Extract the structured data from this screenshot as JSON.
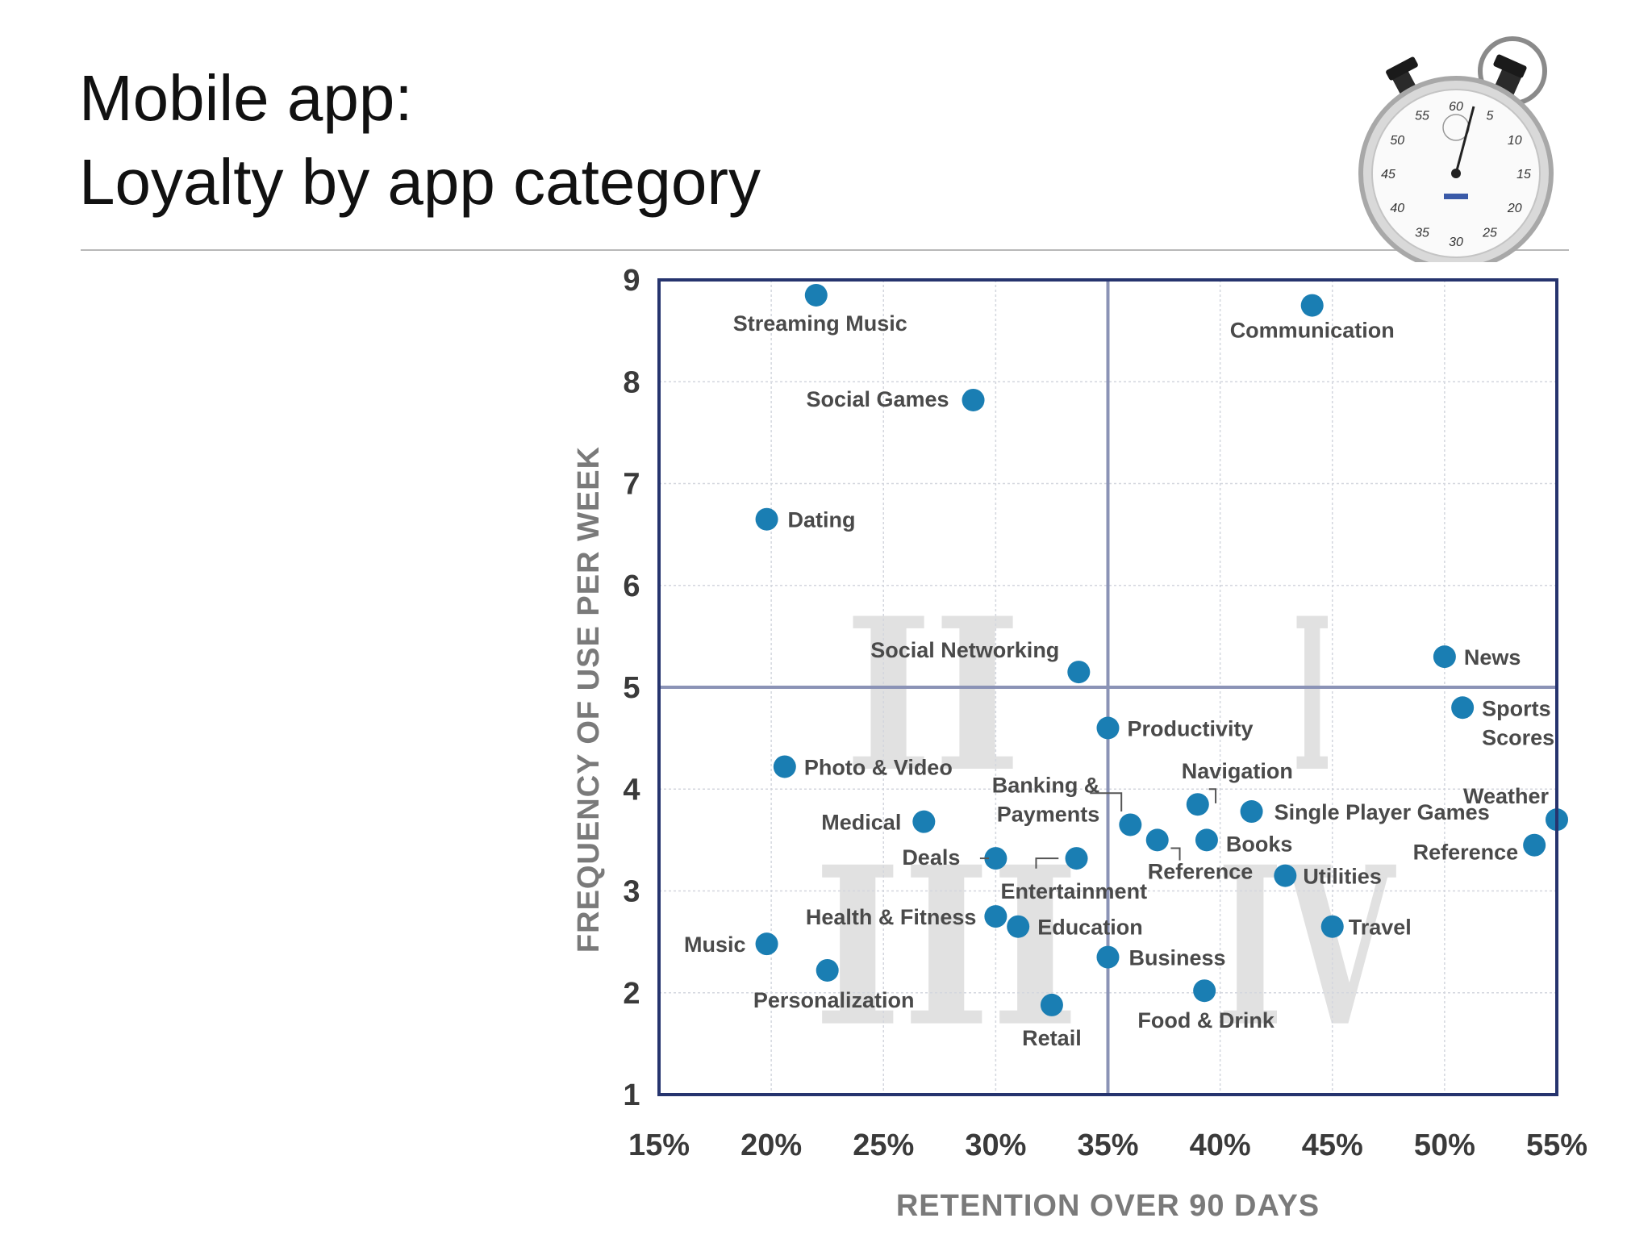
{
  "title": {
    "line1": "Mobile app:",
    "line2": "Loyalty by app category"
  },
  "stopwatch": {
    "icon": "stopwatch-icon",
    "dial_numbers": [
      "5",
      "10",
      "15",
      "20",
      "25",
      "30",
      "35",
      "40",
      "45",
      "50",
      "55",
      "60"
    ]
  },
  "chart_data": {
    "type": "scatter",
    "title": "",
    "xlabel": "RETENTION OVER 90 DAYS",
    "ylabel": "FREQUENCY OF USE PER WEEK",
    "xlim": [
      15,
      55
    ],
    "ylim": [
      1,
      9
    ],
    "x_ticks": [
      "15%",
      "20%",
      "25%",
      "30%",
      "35%",
      "40%",
      "45%",
      "50%",
      "55%"
    ],
    "y_ticks": [
      "1",
      "2",
      "3",
      "4",
      "5",
      "6",
      "7",
      "8",
      "9"
    ],
    "grid": true,
    "divider_lines": {
      "x": 35,
      "y": 5
    },
    "quadrant_labels": [
      "I",
      "II",
      "III",
      "IV"
    ],
    "point_color": "#1a7eb3",
    "frame_color": "#26346e",
    "points": [
      {
        "name": "Streaming Music",
        "x": 22.0,
        "y": 8.85
      },
      {
        "name": "Communication",
        "x": 44.1,
        "y": 8.75
      },
      {
        "name": "Social Games",
        "x": 29.0,
        "y": 7.82
      },
      {
        "name": "Dating",
        "x": 19.8,
        "y": 6.65
      },
      {
        "name": "Social Networking",
        "x": 33.7,
        "y": 5.15
      },
      {
        "name": "News",
        "x": 50.0,
        "y": 5.3
      },
      {
        "name": "Sports Scores",
        "x": 50.8,
        "y": 4.8
      },
      {
        "name": "Productivity",
        "x": 35.0,
        "y": 4.6
      },
      {
        "name": "Photo & Video",
        "x": 20.6,
        "y": 4.22
      },
      {
        "name": "Navigation",
        "x": 39.0,
        "y": 3.85
      },
      {
        "name": "Single Player Games",
        "x": 41.4,
        "y": 3.78
      },
      {
        "name": "Weather",
        "x": 55.0,
        "y": 3.7
      },
      {
        "name": "Medical",
        "x": 26.8,
        "y": 3.68
      },
      {
        "name": "Banking & Payments",
        "x": 36.0,
        "y": 3.65
      },
      {
        "name": "Reference",
        "x": 37.2,
        "y": 3.5
      },
      {
        "name": "Books",
        "x": 39.4,
        "y": 3.5
      },
      {
        "name": "Reference",
        "x": 54.0,
        "y": 3.45
      },
      {
        "name": "Deals",
        "x": 30.0,
        "y": 3.32
      },
      {
        "name": "Entertainment",
        "x": 33.6,
        "y": 3.32
      },
      {
        "name": "Utilities",
        "x": 42.9,
        "y": 3.15
      },
      {
        "name": "Health & Fitness",
        "x": 30.0,
        "y": 2.75
      },
      {
        "name": "Education",
        "x": 31.0,
        "y": 2.65
      },
      {
        "name": "Travel",
        "x": 45.0,
        "y": 2.65
      },
      {
        "name": "Music",
        "x": 19.8,
        "y": 2.48
      },
      {
        "name": "Business",
        "x": 35.0,
        "y": 2.35
      },
      {
        "name": "Personalization",
        "x": 22.5,
        "y": 2.22
      },
      {
        "name": "Food & Drink",
        "x": 39.3,
        "y": 2.02
      },
      {
        "name": "Retail",
        "x": 32.5,
        "y": 1.88
      }
    ]
  }
}
